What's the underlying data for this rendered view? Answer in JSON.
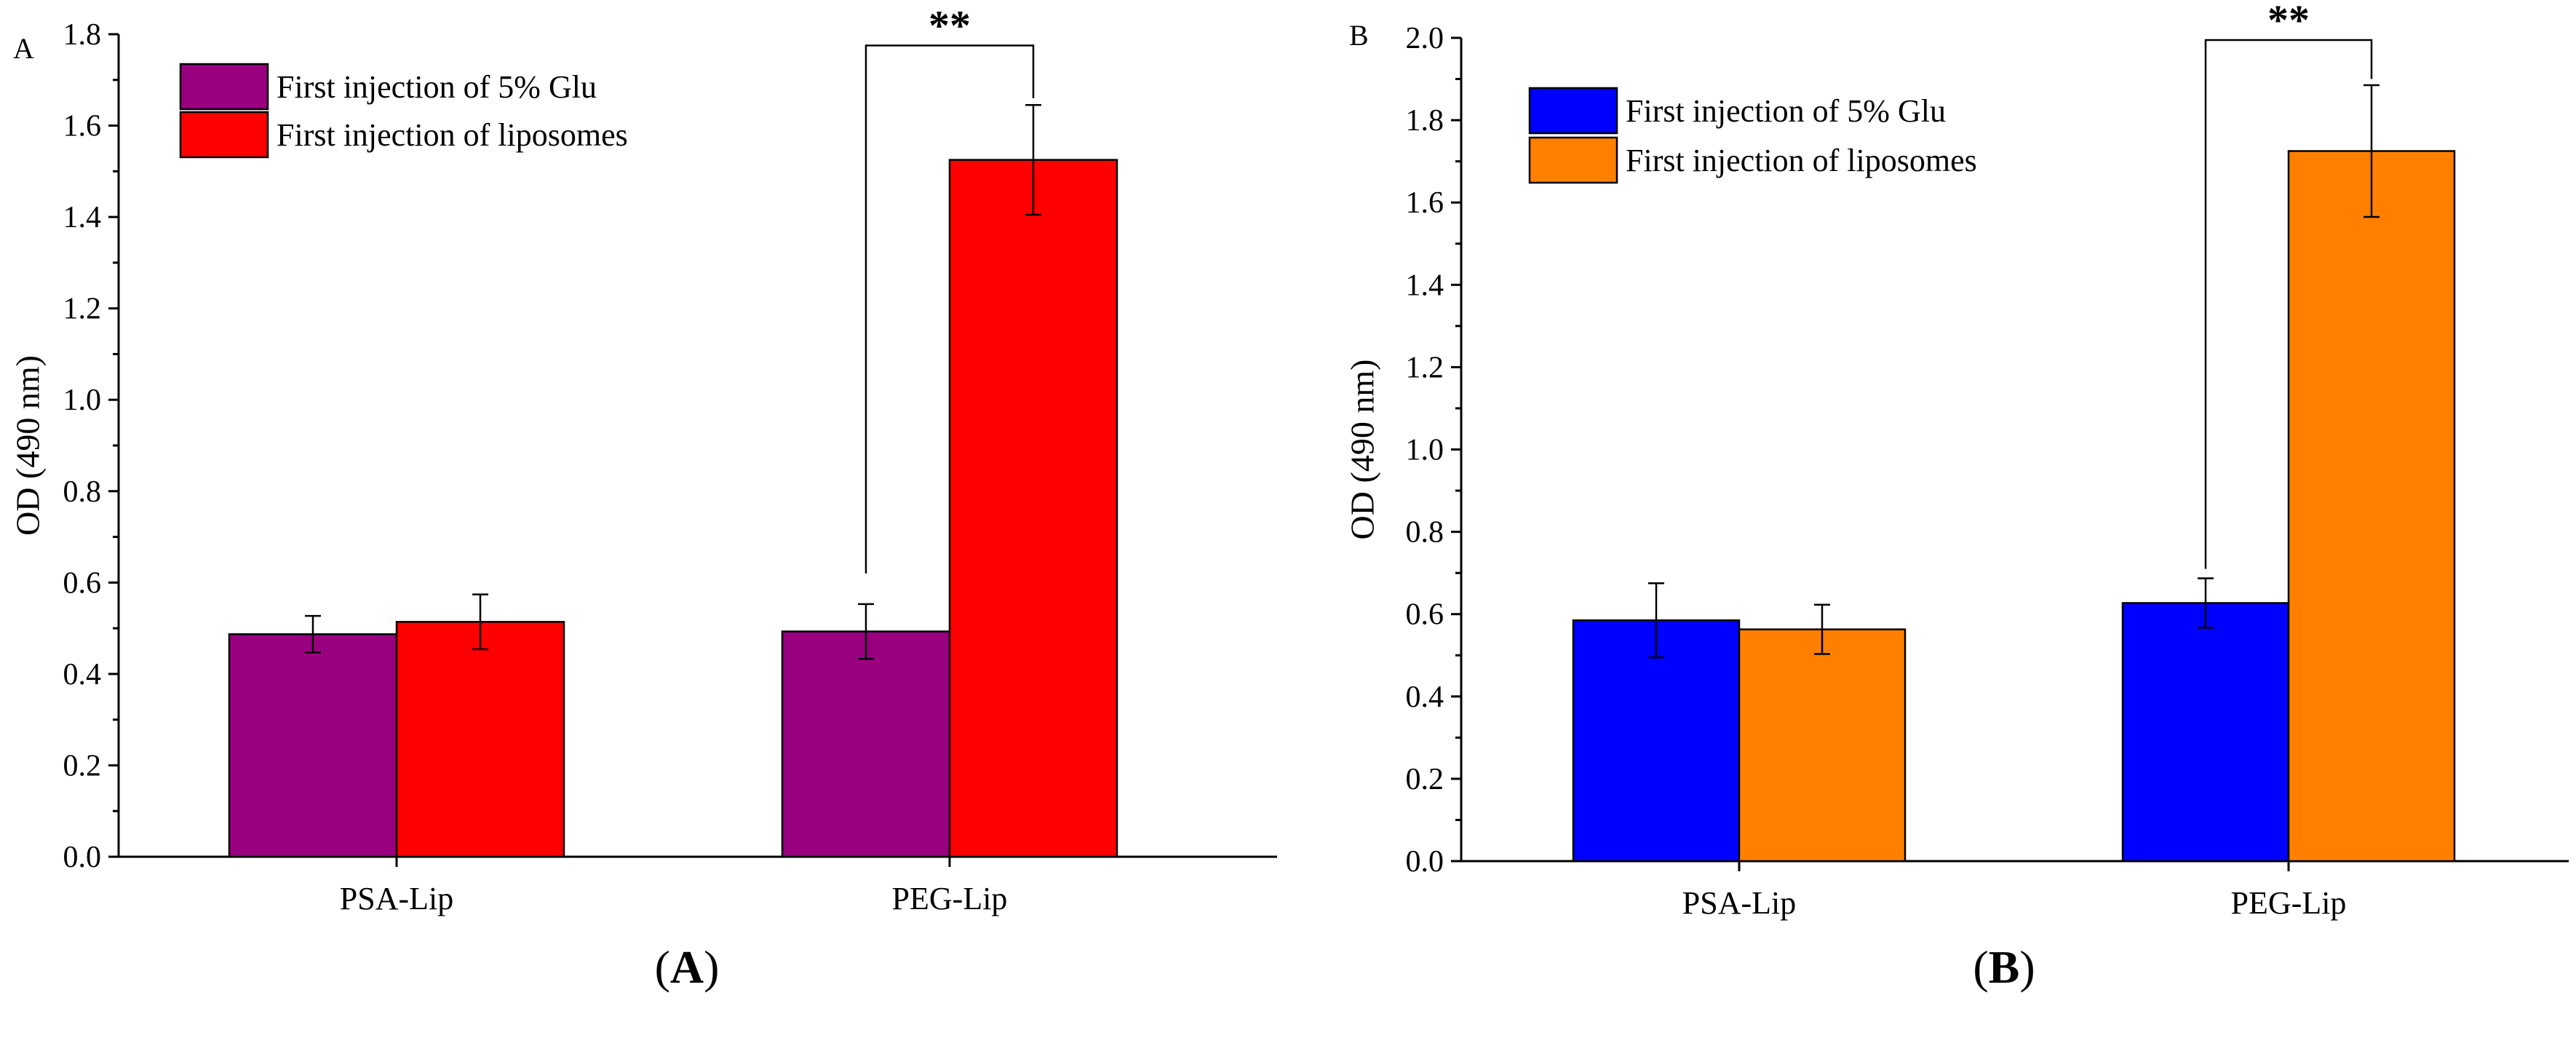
{
  "chart_data": [
    {
      "type": "bar",
      "panel_tag": "A",
      "caption_open": "(",
      "caption_letter": "A",
      "caption_close": ")",
      "ylabel": "OD (490 nm)",
      "xlabel": "",
      "ylim": [
        0,
        1.8
      ],
      "ytick_labels": [
        "0.0",
        "0.2",
        "0.4",
        "0.6",
        "0.8",
        "1.0",
        "1.2",
        "1.4",
        "1.6",
        "1.8"
      ],
      "categories": [
        "PSA-Lip",
        "PEG-Lip"
      ],
      "series": [
        {
          "name": "First injection of 5% Glu",
          "color": "#990080",
          "values": [
            0.487,
            0.493
          ],
          "errors": [
            0.04,
            0.06
          ]
        },
        {
          "name": "First injection of liposomes",
          "color": "#ff0000",
          "values": [
            0.514,
            1.525
          ],
          "errors": [
            0.06,
            0.12
          ]
        }
      ],
      "legend_position": "top-left",
      "annotation": {
        "text": "**",
        "category_index": 1,
        "left_top": 0.62,
        "right_top": 1.66,
        "bar_y": 1.78
      }
    },
    {
      "type": "bar",
      "panel_tag": "B",
      "caption_open": "(",
      "caption_letter": "B",
      "caption_close": ")",
      "ylabel": "OD (490 nm)",
      "xlabel": "",
      "ylim": [
        0,
        2.0
      ],
      "ytick_labels": [
        "0.0",
        "0.2",
        "0.4",
        "0.6",
        "0.8",
        "1.0",
        "1.2",
        "1.4",
        "1.6",
        "1.8",
        "2.0"
      ],
      "categories": [
        "PSA-Lip",
        "PEG-Lip"
      ],
      "series": [
        {
          "name": "First injection of 5% Glu",
          "color": "#0000ff",
          "values": [
            0.585,
            0.627
          ],
          "errors": [
            0.09,
            0.06
          ]
        },
        {
          "name": "First injection of liposomes",
          "color": "#ff8000",
          "values": [
            0.563,
            1.725
          ],
          "errors": [
            0.06,
            0.16
          ]
        }
      ],
      "legend_position": "top-left",
      "annotation": {
        "text": "**",
        "category_index": 1,
        "left_top": 0.71,
        "right_top": 1.9,
        "bar_y": 2.0
      }
    }
  ]
}
